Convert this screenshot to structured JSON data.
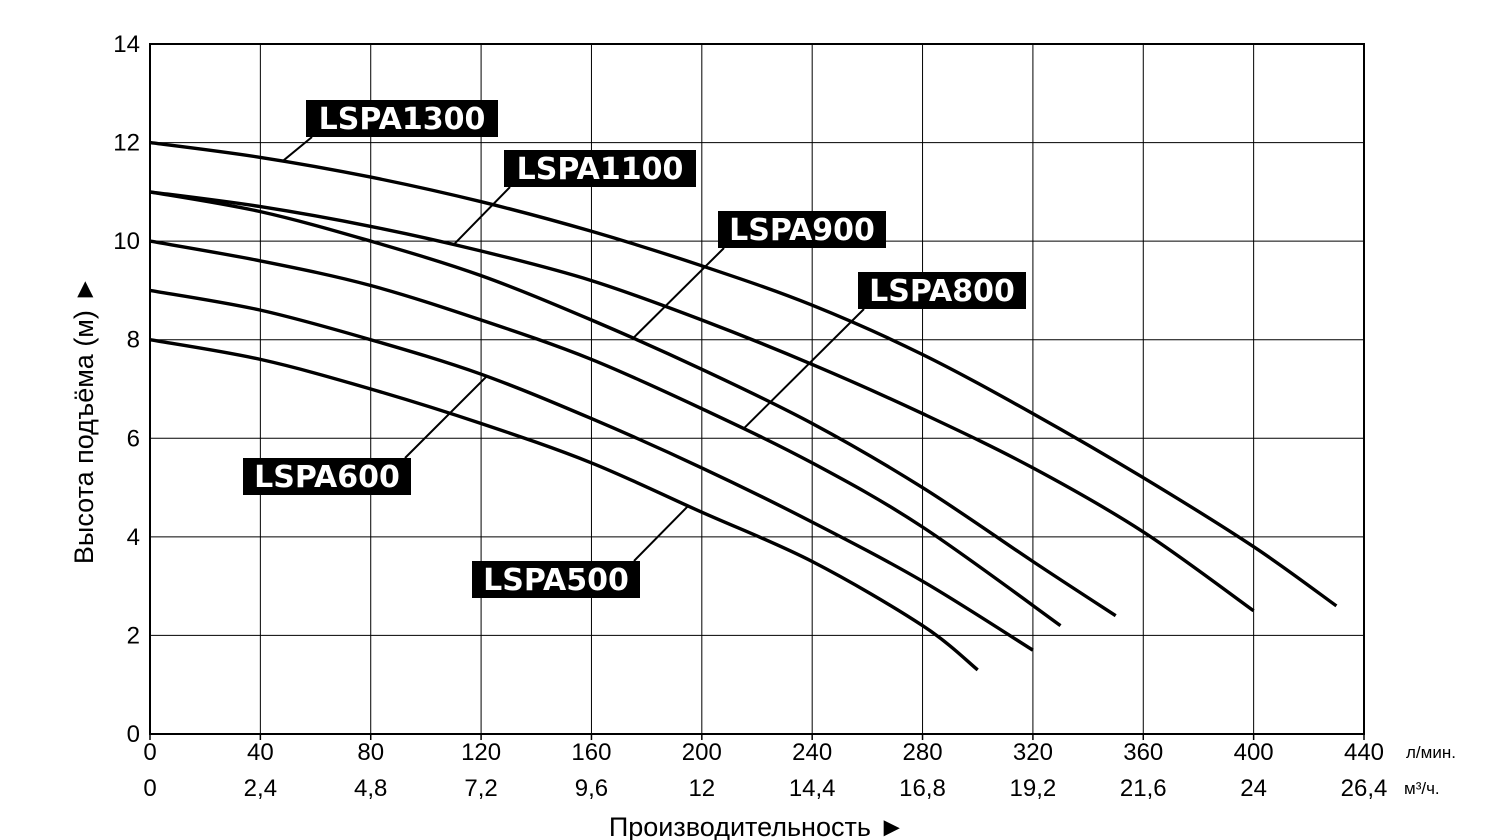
{
  "chart_data": {
    "type": "line",
    "title": "",
    "xlabel": "Производительность ►",
    "ylabel": "Высота подъёма (м) ►",
    "xlim": [
      0,
      440
    ],
    "ylim": [
      0,
      14
    ],
    "x_ticks": [
      "0",
      "40",
      "80",
      "120",
      "160",
      "200",
      "240",
      "280",
      "320",
      "360",
      "400",
      "440"
    ],
    "x_unit": "л/мин.",
    "x2_ticks": [
      "0",
      "2,4",
      "4,8",
      "7,2",
      "9,6",
      "12",
      "14,4",
      "16,8",
      "19,2",
      "21,6",
      "24",
      "26,4"
    ],
    "x2_unit": "м³/ч.",
    "y_ticks": [
      "0",
      "2",
      "4",
      "6",
      "8",
      "10",
      "12",
      "14"
    ],
    "grid": true,
    "series": [
      {
        "name": "LSPA500",
        "x": [
          0,
          40,
          80,
          120,
          160,
          200,
          240,
          280,
          300
        ],
        "y": [
          8.0,
          7.6,
          7.0,
          6.3,
          5.5,
          4.5,
          3.5,
          2.2,
          1.3
        ]
      },
      {
        "name": "LSPA600",
        "x": [
          0,
          40,
          80,
          120,
          160,
          200,
          240,
          280,
          320
        ],
        "y": [
          9.0,
          8.6,
          8.0,
          7.3,
          6.4,
          5.4,
          4.3,
          3.1,
          1.7
        ]
      },
      {
        "name": "LSPA800",
        "x": [
          0,
          40,
          80,
          120,
          160,
          200,
          240,
          280,
          330
        ],
        "y": [
          10.0,
          9.6,
          9.1,
          8.4,
          7.6,
          6.6,
          5.5,
          4.2,
          2.2
        ]
      },
      {
        "name": "LSPA900",
        "x": [
          0,
          40,
          80,
          120,
          160,
          200,
          240,
          280,
          320,
          350
        ],
        "y": [
          11.0,
          10.6,
          10.0,
          9.3,
          8.4,
          7.4,
          6.3,
          5.0,
          3.5,
          2.4
        ]
      },
      {
        "name": "LSPA1100",
        "x": [
          0,
          40,
          80,
          120,
          160,
          200,
          240,
          280,
          320,
          360,
          400
        ],
        "y": [
          11.0,
          10.7,
          10.3,
          9.8,
          9.2,
          8.4,
          7.5,
          6.5,
          5.4,
          4.1,
          2.5
        ]
      },
      {
        "name": "LSPA1300",
        "x": [
          0,
          40,
          80,
          120,
          160,
          200,
          240,
          280,
          320,
          360,
          400,
          430
        ],
        "y": [
          12.0,
          11.7,
          11.3,
          10.8,
          10.2,
          9.5,
          8.7,
          7.7,
          6.5,
          5.2,
          3.8,
          2.6
        ]
      }
    ]
  }
}
